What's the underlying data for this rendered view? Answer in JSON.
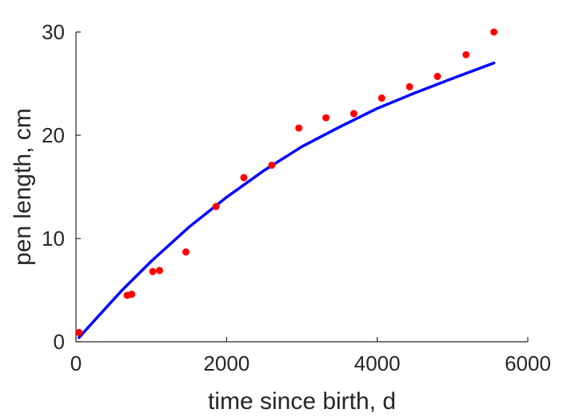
{
  "chart_data": {
    "type": "scatter",
    "title": "",
    "xlabel": "time since birth, d",
    "ylabel": "pen length, cm",
    "xlim": [
      0,
      6000
    ],
    "ylim": [
      0,
      30
    ],
    "x_ticks": [
      0,
      2000,
      4000,
      6000
    ],
    "y_ticks": [
      0,
      10,
      20,
      30
    ],
    "grid": false,
    "legend": "none",
    "series": [
      {
        "kind": "scatter",
        "color": "#ff0000",
        "points": [
          {
            "x": 40,
            "y": 0.9
          },
          {
            "x": 680,
            "y": 4.5
          },
          {
            "x": 740,
            "y": 4.6
          },
          {
            "x": 1020,
            "y": 6.8
          },
          {
            "x": 1110,
            "y": 6.9
          },
          {
            "x": 1460,
            "y": 8.7
          },
          {
            "x": 1860,
            "y": 13.1
          },
          {
            "x": 2230,
            "y": 15.9
          },
          {
            "x": 2600,
            "y": 17.1
          },
          {
            "x": 2960,
            "y": 20.7
          },
          {
            "x": 3320,
            "y": 21.7
          },
          {
            "x": 3690,
            "y": 22.1
          },
          {
            "x": 4060,
            "y": 23.6
          },
          {
            "x": 4430,
            "y": 24.7
          },
          {
            "x": 4800,
            "y": 25.7
          },
          {
            "x": 5180,
            "y": 27.8
          },
          {
            "x": 5550,
            "y": 30.0
          }
        ]
      },
      {
        "kind": "line",
        "color": "#0000ff",
        "points": [
          {
            "x": 40,
            "y": 0.4
          },
          {
            "x": 300,
            "y": 2.5
          },
          {
            "x": 600,
            "y": 4.9
          },
          {
            "x": 1000,
            "y": 7.8
          },
          {
            "x": 1500,
            "y": 11.1
          },
          {
            "x": 2000,
            "y": 14.0
          },
          {
            "x": 2500,
            "y": 16.6
          },
          {
            "x": 3000,
            "y": 18.9
          },
          {
            "x": 3500,
            "y": 20.8
          },
          {
            "x": 4000,
            "y": 22.6
          },
          {
            "x": 4500,
            "y": 24.1
          },
          {
            "x": 5000,
            "y": 25.5
          },
          {
            "x": 5550,
            "y": 27.0
          }
        ]
      }
    ]
  }
}
